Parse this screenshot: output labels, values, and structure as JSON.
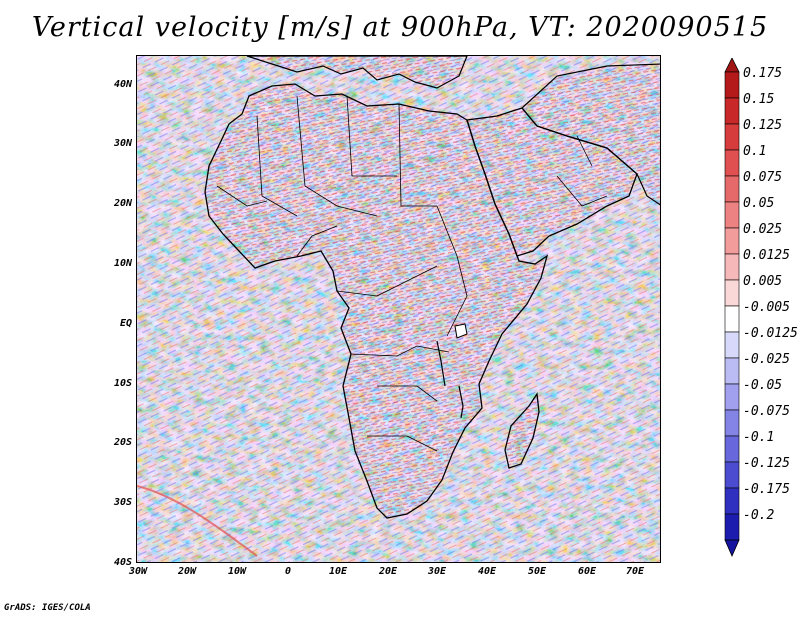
{
  "title": "Vertical velocity [m/s] at 900hPa, VT: 2020090515",
  "map": {
    "region": "Africa and Middle East",
    "variable": "Vertical velocity",
    "units": "m/s",
    "level": "900hPa",
    "valid_time": "2020090515",
    "lon_labels": [
      "30W",
      "20W",
      "10W",
      "0",
      "10E",
      "20E",
      "30E",
      "40E",
      "50E",
      "60E",
      "70E"
    ],
    "lat_labels": [
      "40N",
      "30N",
      "20N",
      "10N",
      "EQ",
      "10S",
      "20S",
      "30S",
      "40S"
    ]
  },
  "colorbar": {
    "labels": [
      "0.175",
      "0.15",
      "0.125",
      "0.1",
      "0.075",
      "0.05",
      "0.025",
      "0.0125",
      "0.005",
      "-0.005",
      "-0.0125",
      "-0.025",
      "-0.05",
      "-0.075",
      "-0.1",
      "-0.125",
      "-0.175",
      "-0.2"
    ],
    "colors": [
      "#b41a1a",
      "#c82828",
      "#d63c3c",
      "#e05050",
      "#e66a6a",
      "#ec8282",
      "#f29c9c",
      "#f6b8b8",
      "#fad8d8",
      "#ffffff",
      "#d8d8fa",
      "#bcbcf4",
      "#a0a0ee",
      "#8484e6",
      "#6868dc",
      "#4c4cd0",
      "#3030c0",
      "#1c1cae"
    ],
    "arrow_top_color": "#a01414",
    "arrow_bottom_color": "#14149e"
  },
  "credit": "GrADS: IGES/COLA"
}
